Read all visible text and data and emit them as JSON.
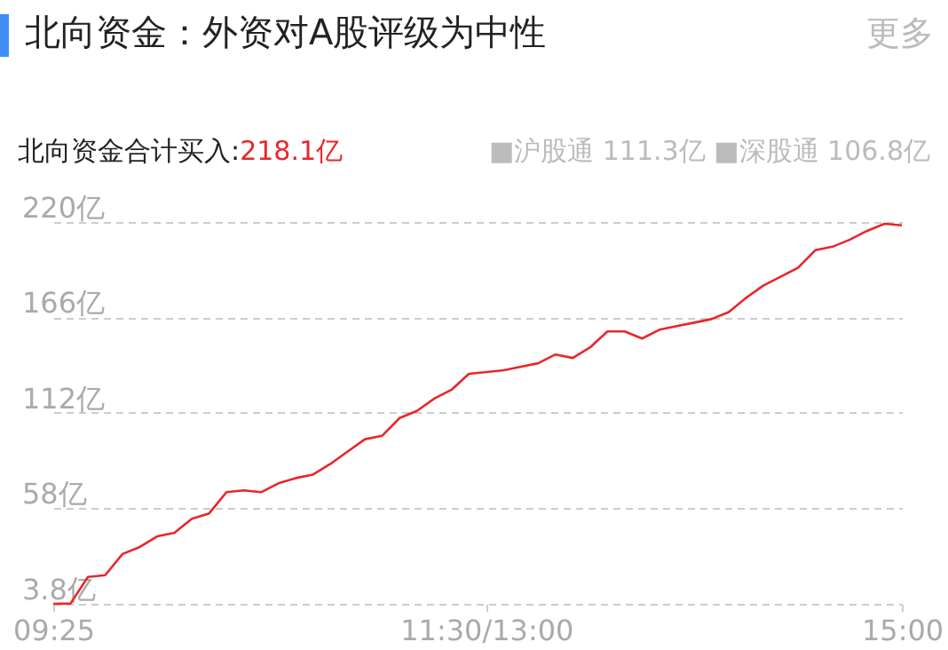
{
  "chart_data": {
    "type": "line",
    "title": "北向资金：外资对A股评级为中性",
    "annotations": [
      "更多",
      "北向资金合计买入:",
      "218.1亿",
      "■沪股通 111.3亿",
      "■深股通 106.8亿"
    ],
    "categories": [
      "09:25",
      null,
      null,
      null,
      null,
      null,
      null,
      null,
      null,
      null,
      null,
      null,
      null,
      null,
      null,
      null,
      null,
      null,
      null,
      null,
      null,
      null,
      null,
      null,
      null,
      "11:30/13:00",
      null,
      null,
      null,
      null,
      null,
      null,
      null,
      null,
      null,
      null,
      null,
      null,
      null,
      null,
      null,
      null,
      null,
      null,
      null,
      null,
      null,
      null,
      null,
      "15:00"
    ],
    "series": [
      {
        "color": "#e8262a",
        "values": [
          3.8,
          4,
          19,
          20,
          32,
          36,
          42,
          44,
          52,
          55,
          67,
          68,
          67,
          72,
          75,
          77,
          83,
          90,
          97,
          99,
          109,
          113,
          120,
          125,
          134,
          135,
          136,
          138,
          140,
          145,
          143,
          149,
          158,
          158,
          154,
          159,
          161,
          163,
          165,
          169,
          177,
          184,
          189,
          194,
          204,
          206,
          210,
          215,
          219,
          218.1
        ]
      }
    ],
    "ylim": [
      3.8,
      220
    ],
    "yticks": [
      {
        "value": 3.8,
        "label": "3.8亿"
      },
      {
        "value": 58,
        "label": "58亿"
      },
      {
        "value": 112,
        "label": "112亿"
      },
      {
        "value": 166,
        "label": "166亿"
      },
      {
        "value": 220,
        "label": "220亿"
      }
    ],
    "grid": "y",
    "line_style": "solid"
  }
}
